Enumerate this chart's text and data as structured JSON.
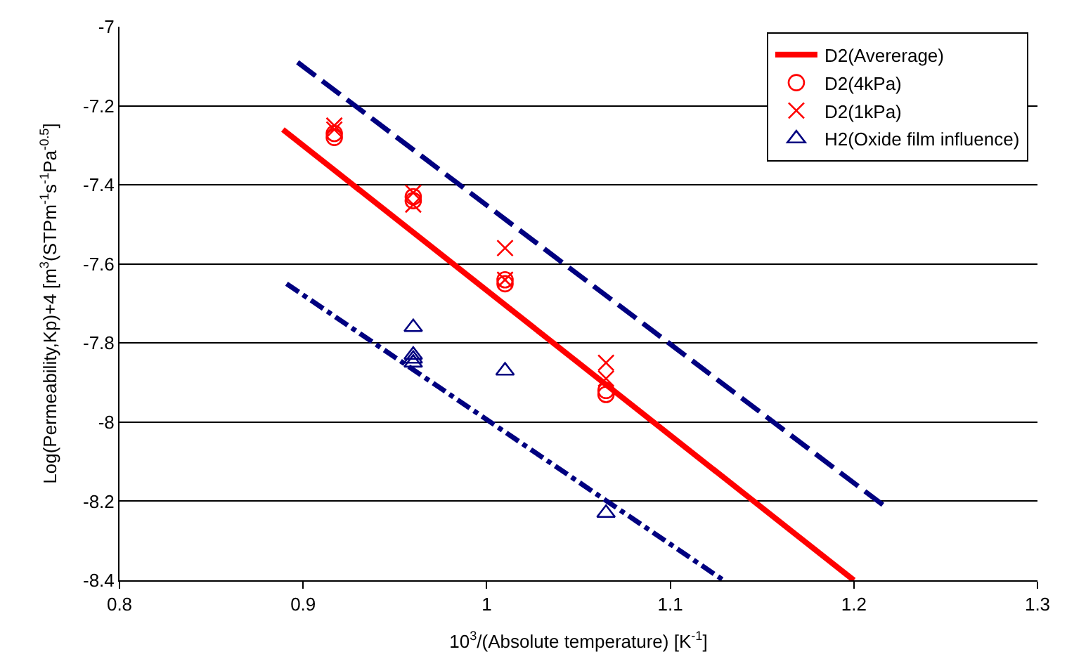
{
  "chart_data": {
    "type": "scatter",
    "xlabel": "10$^{3}$/(Absolute temperature) [K$^{-1}$]",
    "ylabel": "Log(Permeability,Kp)+4 [m$^{3}$(STPm$^{-1}$s$^{-1}$Pa$^{-0.5}$]",
    "xlim": [
      0.8,
      1.3
    ],
    "xticks": [
      0.8,
      0.9,
      1,
      1.1,
      1.2,
      1.3
    ],
    "ylim": [
      -8.4,
      -7
    ],
    "yticks": [
      -8.4,
      -8.2,
      -8,
      -7.8,
      -7.6,
      -7.4,
      -7.2,
      -7
    ],
    "grid": "y",
    "legend": "top right",
    "series": [
      {
        "name": "D2(Avererage)",
        "type": "line",
        "color": "#ff0000",
        "line_style": "solid",
        "marker": "none",
        "x": [
          0.889,
          1.2
        ],
        "values": [
          -7.26,
          -8.4
        ]
      },
      {
        "name": "D2(4kPa)",
        "color": "#ff0000",
        "marker": "circle",
        "x": [
          0.917,
          0.917,
          0.96,
          0.96,
          1.01,
          1.01,
          1.065,
          1.065
        ],
        "values": [
          -7.28,
          -7.27,
          -7.43,
          -7.44,
          -7.65,
          -7.64,
          -7.92,
          -7.93
        ]
      },
      {
        "name": "D2(1kPa)",
        "color": "#ff0000",
        "marker": "cross",
        "x": [
          0.917,
          0.917,
          0.96,
          0.96,
          1.01,
          1.01,
          1.065,
          1.065
        ],
        "values": [
          -7.25,
          -7.26,
          -7.42,
          -7.45,
          -7.56,
          -7.64,
          -7.85,
          -7.89
        ]
      },
      {
        "name": "H2(Oxide film influence)",
        "color": "#000080",
        "marker": "triangle",
        "x": [
          0.96,
          0.96,
          0.96,
          0.96,
          1.01,
          1.065
        ],
        "values": [
          -7.76,
          -7.83,
          -7.84,
          -7.85,
          -7.87,
          -8.23
        ]
      },
      {
        "type": "line",
        "color": "#000080",
        "line_style": "dashed",
        "marker": "none",
        "x": [
          0.897,
          1.216
        ],
        "values": [
          -7.09,
          -8.21
        ]
      },
      {
        "type": "line",
        "color": "#000080",
        "line_style": "dashdot",
        "marker": "none",
        "x": [
          0.891,
          1.129
        ],
        "values": [
          -7.65,
          -8.4
        ]
      }
    ]
  }
}
